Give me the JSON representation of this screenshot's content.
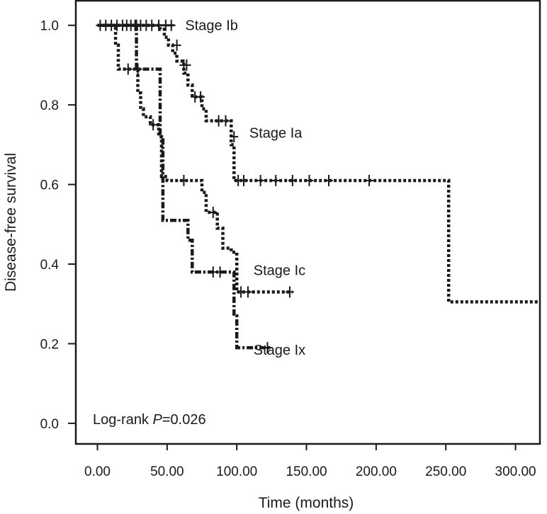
{
  "chart_data": {
    "type": "line",
    "subtype": "kaplan-meier",
    "xlabel": "Time (months)",
    "ylabel": "Disease-free survival",
    "xlim": [
      -15,
      317
    ],
    "ylim": [
      -0.05,
      1.06
    ],
    "x_ticks": [
      0,
      50,
      100,
      150,
      200,
      250,
      300
    ],
    "x_tick_labels": [
      "0.00",
      "50.00",
      "100.00",
      "150.00",
      "200.00",
      "250.00",
      "300.00"
    ],
    "y_ticks": [
      0.0,
      0.2,
      0.4,
      0.6,
      0.8,
      1.0
    ],
    "y_tick_labels": [
      "0.0",
      "0.2",
      "0.4",
      "0.6",
      "0.8",
      "1.0"
    ],
    "grid": false,
    "annotation": {
      "prefix": "Log-rank ",
      "italic": "P",
      "suffix": "=0.026"
    },
    "series": [
      {
        "name": "Stage Ib",
        "line_style": "solid",
        "steps": [
          [
            0,
            1.0
          ],
          [
            55,
            1.0
          ]
        ],
        "censored": [
          [
            2,
            1.0
          ],
          [
            6,
            1.0
          ],
          [
            10,
            1.0
          ],
          [
            14,
            1.0
          ],
          [
            18,
            1.0
          ],
          [
            21,
            1.0
          ],
          [
            24,
            1.0
          ],
          [
            27,
            1.0
          ],
          [
            31,
            1.0
          ],
          [
            35,
            1.0
          ],
          [
            39,
            1.0
          ],
          [
            44,
            1.0
          ],
          [
            49,
            1.0
          ],
          [
            53,
            1.0
          ]
        ],
        "label_value": [
          63,
          1.0
        ]
      },
      {
        "name": "Stage Ia",
        "line_style": "dotted",
        "steps": [
          [
            0,
            1.0
          ],
          [
            45,
            1.0
          ],
          [
            45,
            0.99
          ],
          [
            48,
            0.99
          ],
          [
            48,
            0.97
          ],
          [
            51,
            0.97
          ],
          [
            51,
            0.95
          ],
          [
            54,
            0.95
          ],
          [
            54,
            0.93
          ],
          [
            57,
            0.93
          ],
          [
            57,
            0.91
          ],
          [
            62,
            0.91
          ],
          [
            62,
            0.88
          ],
          [
            65,
            0.88
          ],
          [
            65,
            0.85
          ],
          [
            68,
            0.85
          ],
          [
            68,
            0.82
          ],
          [
            75,
            0.82
          ],
          [
            75,
            0.79
          ],
          [
            78,
            0.79
          ],
          [
            78,
            0.76
          ],
          [
            96,
            0.76
          ],
          [
            96,
            0.7
          ],
          [
            98,
            0.7
          ],
          [
            98,
            0.61
          ],
          [
            252,
            0.61
          ],
          [
            252,
            0.305
          ],
          [
            316,
            0.305
          ]
        ],
        "censored": [
          [
            57,
            0.95
          ],
          [
            62,
            0.9
          ],
          [
            64,
            0.9
          ],
          [
            70,
            0.82
          ],
          [
            74,
            0.82
          ],
          [
            87,
            0.76
          ],
          [
            92,
            0.76
          ],
          [
            98,
            0.72
          ],
          [
            101,
            0.61
          ],
          [
            105,
            0.61
          ],
          [
            117,
            0.61
          ],
          [
            128,
            0.61
          ],
          [
            140,
            0.61
          ],
          [
            152,
            0.61
          ],
          [
            166,
            0.61
          ],
          [
            195,
            0.61
          ]
        ],
        "label_value": [
          109,
          0.73
        ]
      },
      {
        "name": "Stage Ic",
        "line_style": "dotted",
        "steps": [
          [
            0,
            1.0
          ],
          [
            13,
            1.0
          ],
          [
            13,
            0.95
          ],
          [
            15,
            0.95
          ],
          [
            15,
            0.89
          ],
          [
            29,
            0.89
          ],
          [
            29,
            0.83
          ],
          [
            31,
            0.83
          ],
          [
            31,
            0.79
          ],
          [
            33,
            0.79
          ],
          [
            33,
            0.77
          ],
          [
            38,
            0.77
          ],
          [
            38,
            0.75
          ],
          [
            44,
            0.75
          ],
          [
            44,
            0.72
          ],
          [
            46,
            0.72
          ],
          [
            46,
            0.62
          ],
          [
            50,
            0.62
          ],
          [
            50,
            0.61
          ],
          [
            75,
            0.61
          ],
          [
            75,
            0.58
          ],
          [
            78,
            0.58
          ],
          [
            78,
            0.53
          ],
          [
            86,
            0.53
          ],
          [
            86,
            0.49
          ],
          [
            90,
            0.49
          ],
          [
            90,
            0.44
          ],
          [
            96,
            0.44
          ],
          [
            96,
            0.43
          ],
          [
            100,
            0.43
          ],
          [
            100,
            0.33
          ],
          [
            140,
            0.33
          ]
        ],
        "censored": [
          [
            22,
            0.89
          ],
          [
            29,
            0.89
          ],
          [
            40,
            0.75
          ],
          [
            62,
            0.61
          ],
          [
            83,
            0.53
          ],
          [
            103,
            0.33
          ],
          [
            108,
            0.33
          ],
          [
            138,
            0.33
          ]
        ],
        "label_value": [
          112,
          0.385
        ]
      },
      {
        "name": "Stage Ix",
        "line_style": "dash-dot",
        "steps": [
          [
            0,
            1.0
          ],
          [
            28,
            1.0
          ],
          [
            28,
            0.89
          ],
          [
            45,
            0.89
          ],
          [
            45,
            0.72
          ],
          [
            47,
            0.72
          ],
          [
            47,
            0.51
          ],
          [
            65,
            0.51
          ],
          [
            65,
            0.46
          ],
          [
            68,
            0.46
          ],
          [
            68,
            0.38
          ],
          [
            98,
            0.38
          ],
          [
            98,
            0.27
          ],
          [
            100,
            0.27
          ],
          [
            100,
            0.19
          ],
          [
            125,
            0.19
          ]
        ],
        "censored": [
          [
            28,
            1.0
          ],
          [
            83,
            0.38
          ],
          [
            88,
            0.38
          ],
          [
            122,
            0.19
          ]
        ],
        "label_value": [
          112,
          0.185
        ]
      }
    ]
  }
}
